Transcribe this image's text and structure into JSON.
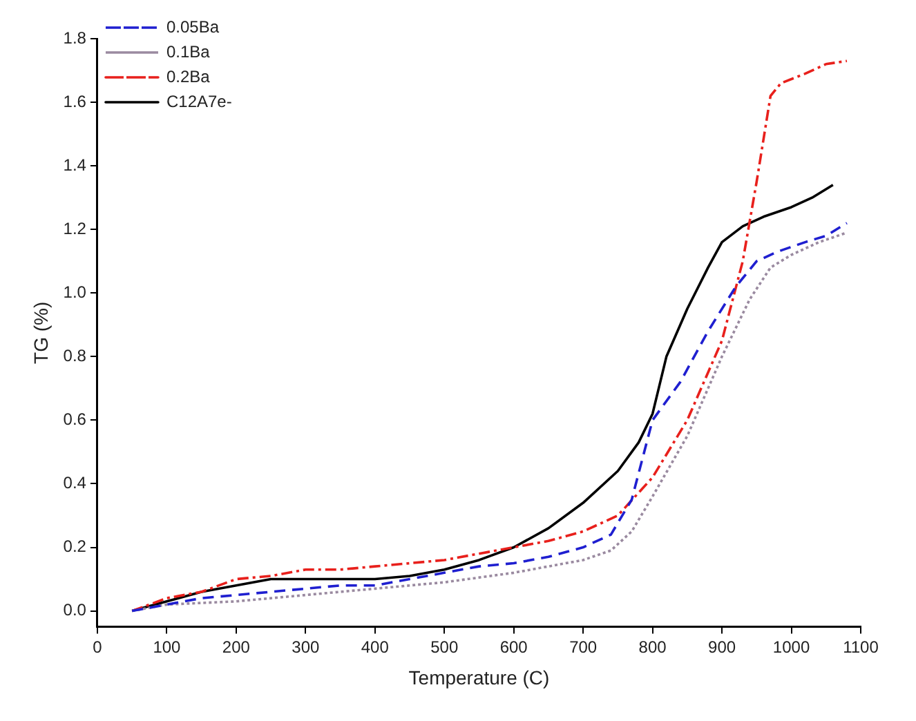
{
  "chart_data": {
    "type": "line",
    "xlabel": "Temperature (C)",
    "ylabel": "TG (%)",
    "xlim": [
      0,
      1100
    ],
    "xticks": [
      0,
      100,
      200,
      300,
      400,
      500,
      600,
      700,
      800,
      900,
      1000,
      1100
    ],
    "ylim": [
      -0.05,
      1.8
    ],
    "yticks": [
      {
        "value": 0,
        "label": "0.0"
      },
      0.2,
      0.4,
      0.6,
      0.8,
      {
        "value": 1,
        "label": "1.0"
      },
      1.2,
      1.4,
      1.6,
      1.8
    ],
    "grid": false,
    "legend": "top left",
    "marker": "none",
    "series": [
      {
        "name": "0.05Ba",
        "color": "#1f1fd0",
        "line_style": "dashed",
        "x": [
          50,
          100,
          150,
          200,
          250,
          300,
          350,
          400,
          450,
          500,
          550,
          600,
          650,
          700,
          740,
          770,
          800,
          840,
          880,
          920,
          950,
          980,
          1020,
          1050,
          1080
        ],
        "values": [
          0,
          0.02,
          0.04,
          0.05,
          0.06,
          0.07,
          0.08,
          0.08,
          0.1,
          0.12,
          0.14,
          0.15,
          0.17,
          0.2,
          0.24,
          0.35,
          0.6,
          0.72,
          0.88,
          1.02,
          1.1,
          1.13,
          1.16,
          1.18,
          1.22
        ]
      },
      {
        "name": "0.1Ba",
        "color": "#9a8aa0",
        "line_style": "dotted",
        "x": [
          50,
          100,
          200,
          300,
          400,
          500,
          600,
          650,
          700,
          740,
          770,
          800,
          850,
          900,
          940,
          970,
          1000,
          1040,
          1080
        ],
        "values": [
          0,
          0.02,
          0.03,
          0.05,
          0.07,
          0.09,
          0.12,
          0.14,
          0.16,
          0.19,
          0.25,
          0.36,
          0.55,
          0.8,
          0.98,
          1.08,
          1.12,
          1.16,
          1.19
        ]
      },
      {
        "name": "0.2Ba",
        "color": "#e8201c",
        "line_style": "dashdot",
        "x": [
          50,
          100,
          150,
          200,
          250,
          300,
          350,
          400,
          450,
          500,
          550,
          600,
          650,
          700,
          750,
          800,
          850,
          900,
          930,
          950,
          970,
          985,
          1020,
          1050,
          1080
        ],
        "values": [
          0,
          0.04,
          0.06,
          0.1,
          0.11,
          0.13,
          0.13,
          0.14,
          0.15,
          0.16,
          0.18,
          0.2,
          0.22,
          0.25,
          0.3,
          0.42,
          0.6,
          0.85,
          1.1,
          1.35,
          1.62,
          1.66,
          1.69,
          1.72,
          1.73
        ]
      },
      {
        "name": "C12A7e-",
        "color": "#000000",
        "line_style": "solid",
        "x": [
          50,
          100,
          150,
          200,
          250,
          300,
          350,
          400,
          450,
          500,
          550,
          600,
          650,
          700,
          750,
          780,
          800,
          820,
          850,
          880,
          900,
          930,
          960,
          1000,
          1030,
          1060
        ],
        "values": [
          0,
          0.03,
          0.06,
          0.08,
          0.1,
          0.1,
          0.1,
          0.1,
          0.11,
          0.13,
          0.16,
          0.2,
          0.26,
          0.34,
          0.44,
          0.53,
          0.62,
          0.8,
          0.95,
          1.08,
          1.16,
          1.21,
          1.24,
          1.27,
          1.3,
          1.34
        ]
      }
    ]
  }
}
